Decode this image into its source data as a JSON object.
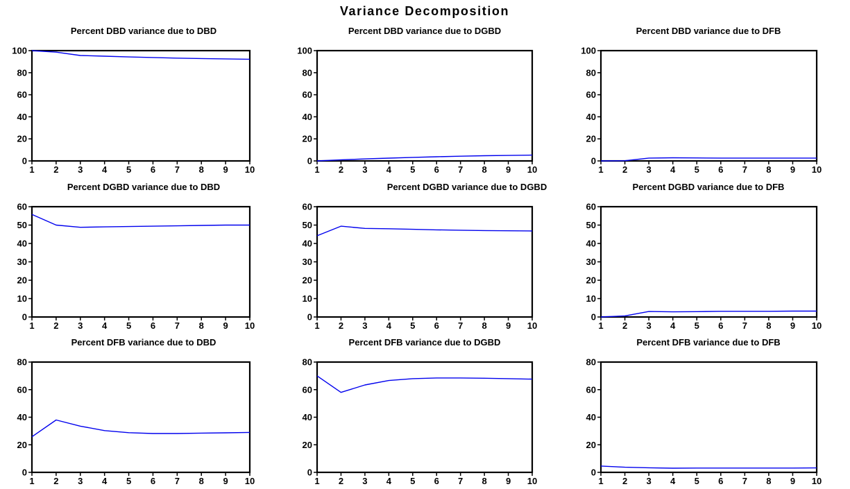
{
  "figure": {
    "title": "Variance Decomposition"
  },
  "colors": {
    "series": "#0000ee",
    "axis": "#000000"
  },
  "chart_data": [
    {
      "type": "line",
      "title": "Percent DBD variance due to DBD",
      "x": [
        1,
        2,
        3,
        4,
        5,
        6,
        7,
        8,
        9,
        10
      ],
      "series": [
        {
          "values": [
            100,
            98.6,
            95.6,
            95.0,
            94.3,
            93.8,
            93.2,
            92.8,
            92.5,
            92.2
          ]
        }
      ],
      "xlim": [
        1,
        10
      ],
      "ylim": [
        0,
        100
      ],
      "yticks": [
        0,
        20,
        40,
        60,
        80,
        100
      ],
      "grid": false
    },
    {
      "type": "line",
      "title": "Percent DBD variance due to DGBD",
      "x": [
        1,
        2,
        3,
        4,
        5,
        6,
        7,
        8,
        9,
        10
      ],
      "series": [
        {
          "values": [
            0,
            1.0,
            1.8,
            2.5,
            3.2,
            3.8,
            4.3,
            4.7,
            5.0,
            5.3
          ]
        }
      ],
      "xlim": [
        1,
        10
      ],
      "ylim": [
        0,
        100
      ],
      "yticks": [
        0,
        20,
        40,
        60,
        80,
        100
      ],
      "grid": false
    },
    {
      "type": "line",
      "title": "Percent DBD variance due to DFB",
      "x": [
        1,
        2,
        3,
        4,
        5,
        6,
        7,
        8,
        9,
        10
      ],
      "series": [
        {
          "values": [
            0,
            0.2,
            2.6,
            2.8,
            2.7,
            2.6,
            2.6,
            2.6,
            2.6,
            2.6
          ]
        }
      ],
      "xlim": [
        1,
        10
      ],
      "ylim": [
        0,
        100
      ],
      "yticks": [
        0,
        20,
        40,
        60,
        80,
        100
      ],
      "grid": false
    },
    {
      "type": "line",
      "title": "Percent DGBD variance due to DBD",
      "x": [
        1,
        2,
        3,
        4,
        5,
        6,
        7,
        8,
        9,
        10
      ],
      "series": [
        {
          "values": [
            55.8,
            50.0,
            48.8,
            49.0,
            49.2,
            49.4,
            49.6,
            49.8,
            50.0,
            50.0
          ]
        }
      ],
      "xlim": [
        1,
        10
      ],
      "ylim": [
        0,
        60
      ],
      "yticks": [
        0,
        10,
        20,
        30,
        40,
        50,
        60
      ],
      "grid": false
    },
    {
      "type": "line",
      "title": "Percent DGBD variance due to DGBD",
      "x": [
        1,
        2,
        3,
        4,
        5,
        6,
        7,
        8,
        9,
        10
      ],
      "series": [
        {
          "values": [
            44.2,
            49.4,
            48.2,
            48.0,
            47.7,
            47.4,
            47.2,
            47.0,
            46.9,
            46.8
          ]
        }
      ],
      "xlim": [
        1,
        10
      ],
      "ylim": [
        0,
        60
      ],
      "yticks": [
        0,
        10,
        20,
        30,
        40,
        50,
        60
      ],
      "grid": false
    },
    {
      "type": "line",
      "title": "Percent DGBD variance due to DFB",
      "x": [
        1,
        2,
        3,
        4,
        5,
        6,
        7,
        8,
        9,
        10
      ],
      "series": [
        {
          "values": [
            0,
            0.6,
            3.0,
            2.8,
            2.9,
            3.1,
            3.1,
            3.1,
            3.2,
            3.2
          ]
        }
      ],
      "xlim": [
        1,
        10
      ],
      "ylim": [
        0,
        60
      ],
      "yticks": [
        0,
        10,
        20,
        30,
        40,
        50,
        60
      ],
      "grid": false
    },
    {
      "type": "line",
      "title": "Percent DFB variance due to DBD",
      "x": [
        1,
        2,
        3,
        4,
        5,
        6,
        7,
        8,
        9,
        10
      ],
      "series": [
        {
          "values": [
            25.8,
            38.0,
            33.5,
            30.3,
            28.8,
            28.2,
            28.2,
            28.5,
            28.7,
            29.0
          ]
        }
      ],
      "xlim": [
        1,
        10
      ],
      "ylim": [
        0,
        80
      ],
      "yticks": [
        0,
        20,
        40,
        60,
        80
      ],
      "grid": false
    },
    {
      "type": "line",
      "title": "Percent DFB variance due to DGBD",
      "x": [
        1,
        2,
        3,
        4,
        5,
        6,
        7,
        8,
        9,
        10
      ],
      "series": [
        {
          "values": [
            70.0,
            58.0,
            63.4,
            66.6,
            68.0,
            68.5,
            68.5,
            68.3,
            68.0,
            67.6
          ]
        }
      ],
      "xlim": [
        1,
        10
      ],
      "ylim": [
        0,
        80
      ],
      "yticks": [
        0,
        20,
        40,
        60,
        80
      ],
      "grid": false
    },
    {
      "type": "line",
      "title": "Percent DFB variance due to DFB",
      "x": [
        1,
        2,
        3,
        4,
        5,
        6,
        7,
        8,
        9,
        10
      ],
      "series": [
        {
          "values": [
            4.6,
            3.7,
            3.3,
            3.0,
            3.1,
            3.1,
            3.1,
            3.1,
            3.1,
            3.2
          ]
        }
      ],
      "xlim": [
        1,
        10
      ],
      "ylim": [
        0,
        80
      ],
      "yticks": [
        0,
        20,
        40,
        60,
        80
      ],
      "grid": false
    }
  ]
}
